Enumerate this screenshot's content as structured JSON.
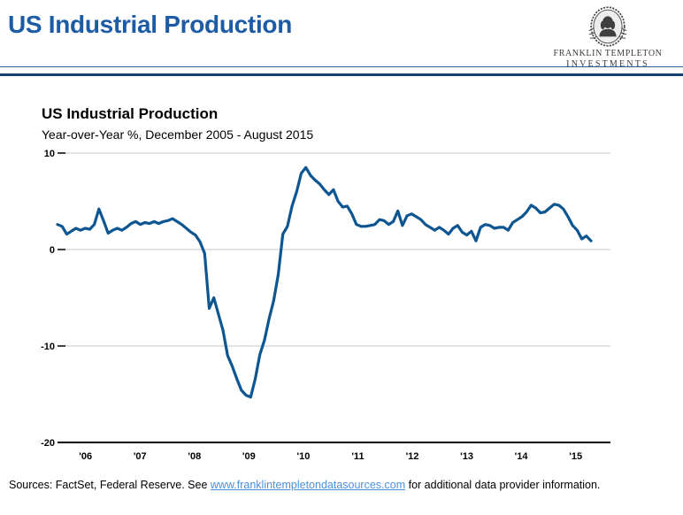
{
  "header": {
    "title": "US Industrial Production",
    "title_color": "#1c5ca6",
    "rule_thin_color": "#2a5f9e",
    "rule_thick_color": "#143e75"
  },
  "logo": {
    "name": "Franklin Templeton Investments",
    "line1": "FRANKLIN TEMPLETON",
    "line2": "INVESTMENTS"
  },
  "chart": {
    "title": "US Industrial Production",
    "subtitle": "Year-over-Year %, December 2005 - August 2015"
  },
  "chart_data": {
    "type": "line",
    "title": "US Industrial Production",
    "subtitle": "Year-over-Year %, December 2005 - August 2015",
    "unit": "percent, year-over-year change",
    "frequency": "monthly",
    "period_start": "December 2005",
    "period_end": "August 2015",
    "grid": "horizontal gridlines at 10, 0, -10; black axis line at -20",
    "legend": "none",
    "line_color": "#0e5691",
    "gridline_color": "#c6c6c6",
    "axis_color": "#000000",
    "ylim": [
      -20,
      10
    ],
    "y_ticks": [
      10,
      0,
      -10,
      -20
    ],
    "y_tick_labels": [
      "10",
      "0",
      "-10",
      "-20"
    ],
    "x_tick_labels": [
      "'06",
      "'07",
      "'08",
      "'09",
      "'10",
      "'11",
      "'12",
      "'13",
      "'14",
      "'15"
    ],
    "values": [
      2.6,
      2.4,
      1.6,
      1.9,
      2.2,
      2.0,
      2.2,
      2.1,
      2.6,
      4.2,
      3.0,
      1.7,
      2.0,
      2.2,
      2.0,
      2.3,
      2.7,
      2.9,
      2.6,
      2.8,
      2.7,
      2.9,
      2.7,
      2.9,
      3.0,
      3.2,
      2.9,
      2.6,
      2.2,
      1.8,
      1.5,
      0.8,
      -0.4,
      -6.1,
      -5.0,
      -6.7,
      -8.4,
      -11.0,
      -12.1,
      -13.4,
      -14.6,
      -15.1,
      -15.3,
      -13.4,
      -10.9,
      -9.4,
      -7.2,
      -5.3,
      -2.6,
      1.6,
      2.4,
      4.5,
      6.0,
      7.9,
      8.5,
      7.7,
      7.2,
      6.8,
      6.2,
      5.7,
      6.2,
      5.0,
      4.4,
      4.5,
      3.7,
      2.6,
      2.4,
      2.4,
      2.5,
      2.6,
      3.1,
      3.0,
      2.6,
      2.9,
      4.0,
      2.5,
      3.5,
      3.7,
      3.4,
      3.1,
      2.6,
      2.3,
      2.0,
      2.3,
      2.0,
      1.6,
      2.2,
      2.5,
      1.8,
      1.5,
      1.9,
      0.9,
      2.3,
      2.6,
      2.5,
      2.2,
      2.3,
      2.3,
      2.0,
      2.8,
      3.1,
      3.4,
      3.9,
      4.6,
      4.3,
      3.8,
      3.9,
      4.3,
      4.7,
      4.6,
      4.2,
      3.4,
      2.5,
      2.0,
      1.1,
      1.4,
      0.9
    ]
  },
  "footer": {
    "prefix": "Sources: FactSet, Federal Reserve. See ",
    "link": "www.franklintempletondatasources.com",
    "suffix": " for additional data provider information.",
    "link_color": "#4a90d9"
  }
}
